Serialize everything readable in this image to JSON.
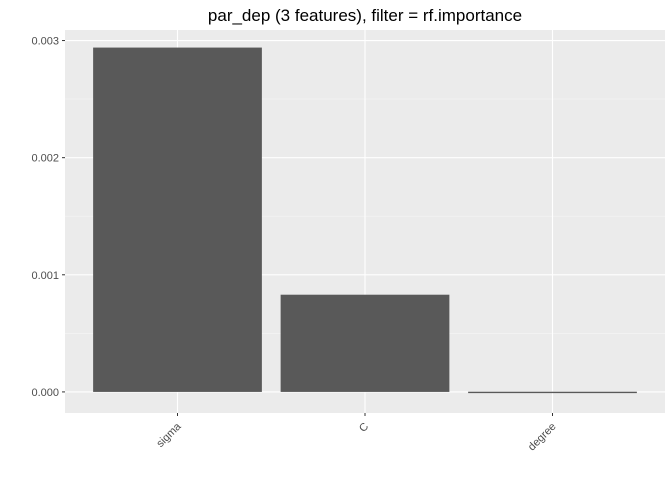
{
  "chart_data": {
    "type": "bar",
    "title": "par_dep (3 features), filter = rf.importance",
    "xlabel": "",
    "ylabel": "",
    "categories": [
      "sigma",
      "C",
      "degree"
    ],
    "values": [
      0.00294,
      0.00083,
      -1e-05
    ],
    "ylim": [
      -0.00018,
      0.00309
    ],
    "yticks": [
      0.0,
      0.001,
      0.002,
      0.003
    ],
    "ytick_labels": [
      "0.000",
      "0.001",
      "0.002",
      "0.003"
    ],
    "grid": true,
    "legend": "none",
    "colors": {
      "bar": "#595959",
      "panel": "#ebebeb",
      "grid_major": "#ffffff",
      "grid_minor": "#f5f5f5",
      "text": "#4d4d4d"
    }
  }
}
